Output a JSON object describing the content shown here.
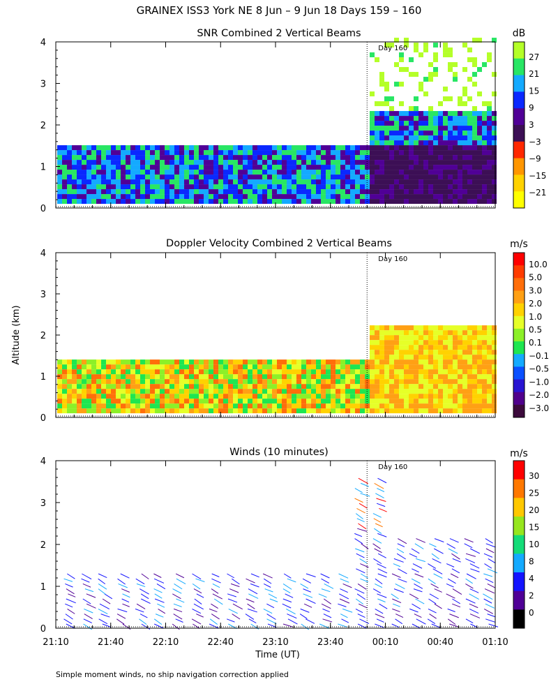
{
  "figure": {
    "title": "GRAINEX ISS3 York NE   8 Jun –  9 Jun 18 Days 159 – 160",
    "ylabel": "Altitude (km)",
    "xlabel": "Time (UT)",
    "footnote": "Simple moment winds, no ship navigation correction applied",
    "day_marker_label": "Day 160",
    "day_marker_time": "00:00"
  },
  "chart_data": [
    {
      "type": "heatmap",
      "title": "SNR Combined 2 Vertical Beams",
      "xlabel": "Time (UT)",
      "ylabel": "Altitude (km)",
      "x_ticks": [
        "21:10",
        "21:40",
        "22:10",
        "22:40",
        "23:10",
        "23:40",
        "00:10",
        "00:40",
        "01:10"
      ],
      "y_ticks": [
        0,
        1,
        2,
        3,
        4
      ],
      "ylim": [
        0,
        4
      ],
      "xlim_minutes": [
        0,
        240
      ],
      "colorbar": {
        "unit": "dB",
        "labels": [
          "27",
          "21",
          "15",
          "9",
          "3",
          "−3",
          "−9",
          "−15",
          "−21"
        ],
        "colors": [
          "#ffff00",
          "#ffd200",
          "#ff9600",
          "#ff2800",
          "#3c0f55",
          "#500096",
          "#0a28ff",
          "#14aaff",
          "#28e664",
          "#b4ff28"
        ]
      },
      "coverage": [
        {
          "from_time": "21:10",
          "to_time": "23:50",
          "top_km": 1.4
        },
        {
          "from_time": "00:00",
          "to_time": "01:10",
          "top_km": 4.0
        }
      ],
      "grid": false
    },
    {
      "type": "heatmap",
      "title": "Doppler Velocity Combined 2 Vertical Beams",
      "xlabel": "Time (UT)",
      "ylabel": "Altitude (km)",
      "x_ticks": [
        "21:10",
        "21:40",
        "22:10",
        "22:40",
        "23:10",
        "23:40",
        "00:10",
        "00:40",
        "01:10"
      ],
      "y_ticks": [
        0,
        1,
        2,
        3,
        4
      ],
      "ylim": [
        0,
        4
      ],
      "colorbar": {
        "unit": "m/s",
        "labels": [
          "10.0",
          "5.0",
          "3.0",
          "2.0",
          "1.0",
          "0.5",
          "0.1",
          "−0.1",
          "−0.5",
          "−1.0",
          "−2.0",
          "−3.0"
        ],
        "colors": [
          "#3c0a3c",
          "#50008c",
          "#2814d2",
          "#0a50ff",
          "#14aaff",
          "#1ee650",
          "#8cf028",
          "#e6ff28",
          "#ffd200",
          "#ffa014",
          "#ff6e0a",
          "#ff3c00",
          "#ff0000"
        ]
      },
      "coverage": [
        {
          "from_time": "21:10",
          "to_time": "23:50",
          "top_km": 1.4
        },
        {
          "from_time": "00:00",
          "to_time": "01:10",
          "top_km": 2.2
        }
      ],
      "grid": false
    },
    {
      "type": "scatter",
      "title": "Winds (10 minutes)",
      "xlabel": "Time (UT)",
      "ylabel": "Altitude (km)",
      "x_ticks": [
        "21:10",
        "21:40",
        "22:10",
        "22:40",
        "23:10",
        "23:40",
        "00:10",
        "00:40",
        "01:10"
      ],
      "y_ticks": [
        0,
        1,
        2,
        3,
        4
      ],
      "ylim": [
        0,
        4
      ],
      "profile_times": [
        "21:15",
        "21:25",
        "21:35",
        "21:45",
        "21:55",
        "22:05",
        "22:15",
        "22:25",
        "22:35",
        "22:45",
        "22:55",
        "23:05",
        "23:15",
        "23:25",
        "23:35",
        "23:45",
        "23:55",
        "00:05",
        "00:15",
        "00:25",
        "00:35",
        "00:45",
        "00:55",
        "01:05"
      ],
      "profile_tops_km": [
        1.4,
        1.4,
        1.4,
        1.4,
        1.4,
        1.4,
        1.4,
        1.4,
        1.4,
        1.4,
        1.4,
        1.4,
        1.4,
        1.4,
        1.4,
        1.4,
        3.6,
        3.6,
        2.2,
        2.2,
        2.2,
        2.2,
        2.2,
        2.2
      ],
      "colorbar": {
        "unit": "m/s",
        "labels": [
          "30",
          "25",
          "20",
          "15",
          "10",
          "8",
          "4",
          "2",
          "0"
        ],
        "colors": [
          "#ff0000",
          "#ff7800",
          "#ffc800",
          "#96e61e",
          "#14dc78",
          "#14aaff",
          "#1414ff",
          "#500096",
          "#000000"
        ]
      },
      "grid": false
    }
  ]
}
